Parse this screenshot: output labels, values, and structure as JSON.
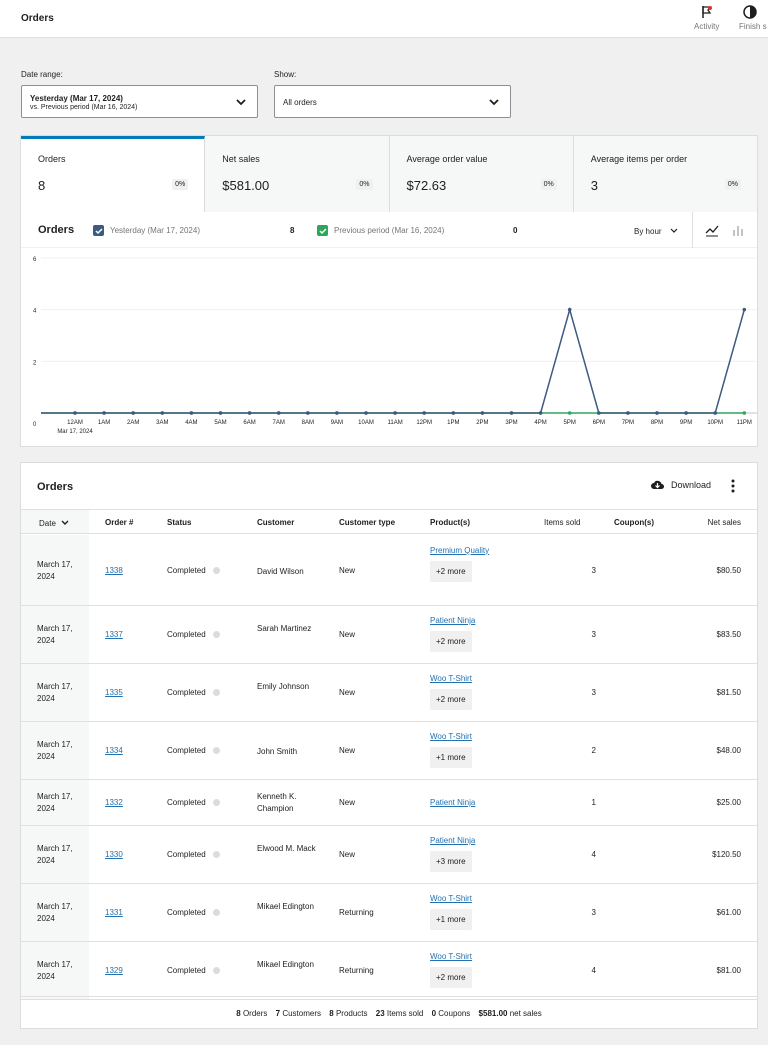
{
  "topbar": {
    "title": "Orders",
    "activity_label": "Activity",
    "finish_label": "Finish s"
  },
  "filters": {
    "date_range_label": "Date range:",
    "date_range_value": "Yesterday (Mar 17, 2024)",
    "date_range_compare": "vs. Previous period (Mar 16, 2024)",
    "show_label": "Show:",
    "show_value": "All orders"
  },
  "summary": [
    {
      "label": "Orders",
      "value": "8",
      "change": "0%"
    },
    {
      "label": "Net sales",
      "value": "$581.00",
      "change": "0%"
    },
    {
      "label": "Average order value",
      "value": "$72.63",
      "change": "0%"
    },
    {
      "label": "Average items per order",
      "value": "3",
      "change": "0%"
    }
  ],
  "chart_header": {
    "title": "Orders",
    "legend_current": "Yesterday (Mar 17, 2024)",
    "legend_current_value": "8",
    "legend_previous": "Previous period (Mar 16, 2024)",
    "legend_previous_value": "0",
    "interval": "By hour",
    "colors": {
      "current": "#3d5a80",
      "previous": "#2ea65a",
      "accent": "#2271b1"
    }
  },
  "chart_data": {
    "type": "line",
    "x": [
      "12AM",
      "1AM",
      "2AM",
      "3AM",
      "4AM",
      "5AM",
      "6AM",
      "7AM",
      "8AM",
      "9AM",
      "10AM",
      "11AM",
      "12PM",
      "1PM",
      "2PM",
      "3PM",
      "4PM",
      "5PM",
      "6PM",
      "7PM",
      "8PM",
      "9PM",
      "10PM",
      "11PM"
    ],
    "x_sublabel": "Mar 17, 2024",
    "series": [
      {
        "name": "Yesterday (Mar 17, 2024)",
        "values": [
          0,
          0,
          0,
          0,
          0,
          0,
          0,
          0,
          0,
          0,
          0,
          0,
          0,
          0,
          0,
          0,
          0,
          4,
          0,
          0,
          0,
          0,
          0,
          4
        ]
      },
      {
        "name": "Previous period (Mar 16, 2024)",
        "values": [
          0,
          0,
          0,
          0,
          0,
          0,
          0,
          0,
          0,
          0,
          0,
          0,
          0,
          0,
          0,
          0,
          0,
          0,
          0,
          0,
          0,
          0,
          0,
          0
        ]
      }
    ],
    "yticks": [
      0,
      2,
      4,
      6
    ],
    "ylim": [
      0,
      6
    ],
    "grid": true
  },
  "table": {
    "title": "Orders",
    "download_label": "Download",
    "columns": {
      "date": "Date",
      "order": "Order #",
      "status": "Status",
      "customer": "Customer",
      "customer_type": "Customer type",
      "products": "Product(s)",
      "items": "Items sold",
      "coupons": "Coupon(s)",
      "net": "Net sales"
    },
    "rows": [
      {
        "date": "March 17, 2024",
        "order": "1338",
        "status": "Completed",
        "customer": "David Wilson",
        "ctype": "New",
        "product": "Premium Quality",
        "more": "+2 more",
        "items": "3",
        "net": "$80.50"
      },
      {
        "date": "March 17, 2024",
        "order": "1337",
        "status": "Completed",
        "customer": "Sarah Martinez",
        "ctype": "New",
        "product": "Patient Ninja",
        "more": "+2 more",
        "items": "3",
        "net": "$83.50"
      },
      {
        "date": "March 17, 2024",
        "order": "1335",
        "status": "Completed",
        "customer": "Emily Johnson",
        "ctype": "New",
        "product": "Woo T-Shirt",
        "more": "+2 more",
        "items": "3",
        "net": "$81.50"
      },
      {
        "date": "March 17, 2024",
        "order": "1334",
        "status": "Completed",
        "customer": "John Smith",
        "ctype": "New",
        "product": "Woo T-Shirt",
        "more": "+1 more",
        "items": "2",
        "net": "$48.00"
      },
      {
        "date": "March 17, 2024",
        "order": "1332",
        "status": "Completed",
        "customer": "Kenneth K. Champion",
        "ctype": "New",
        "product": "Patient Ninja",
        "more": "",
        "items": "1",
        "net": "$25.00"
      },
      {
        "date": "March 17, 2024",
        "order": "1330",
        "status": "Completed",
        "customer": "Elwood M. Mack",
        "ctype": "New",
        "product": "Patient Ninja",
        "more": "+3 more",
        "items": "4",
        "net": "$120.50"
      },
      {
        "date": "March 17, 2024",
        "order": "1331",
        "status": "Completed",
        "customer": "Mikael Edington",
        "ctype": "Returning",
        "product": "Woo T-Shirt",
        "more": "+1 more",
        "items": "3",
        "net": "$61.00"
      },
      {
        "date": "March 17, 2024",
        "order": "1329",
        "status": "Completed",
        "customer": "Mikael Edington",
        "ctype": "Returning",
        "product": "Woo T-Shirt",
        "more": "+2 more",
        "items": "4",
        "net": "$81.00"
      }
    ],
    "footer": {
      "orders_n": "8",
      "orders_l": "Orders",
      "customers_n": "7",
      "customers_l": "Customers",
      "products_n": "8",
      "products_l": "Products",
      "items_n": "23",
      "items_l": "Items sold",
      "coupons_n": "0",
      "coupons_l": "Coupons",
      "net_n": "$581.00",
      "net_l": "net sales"
    }
  }
}
